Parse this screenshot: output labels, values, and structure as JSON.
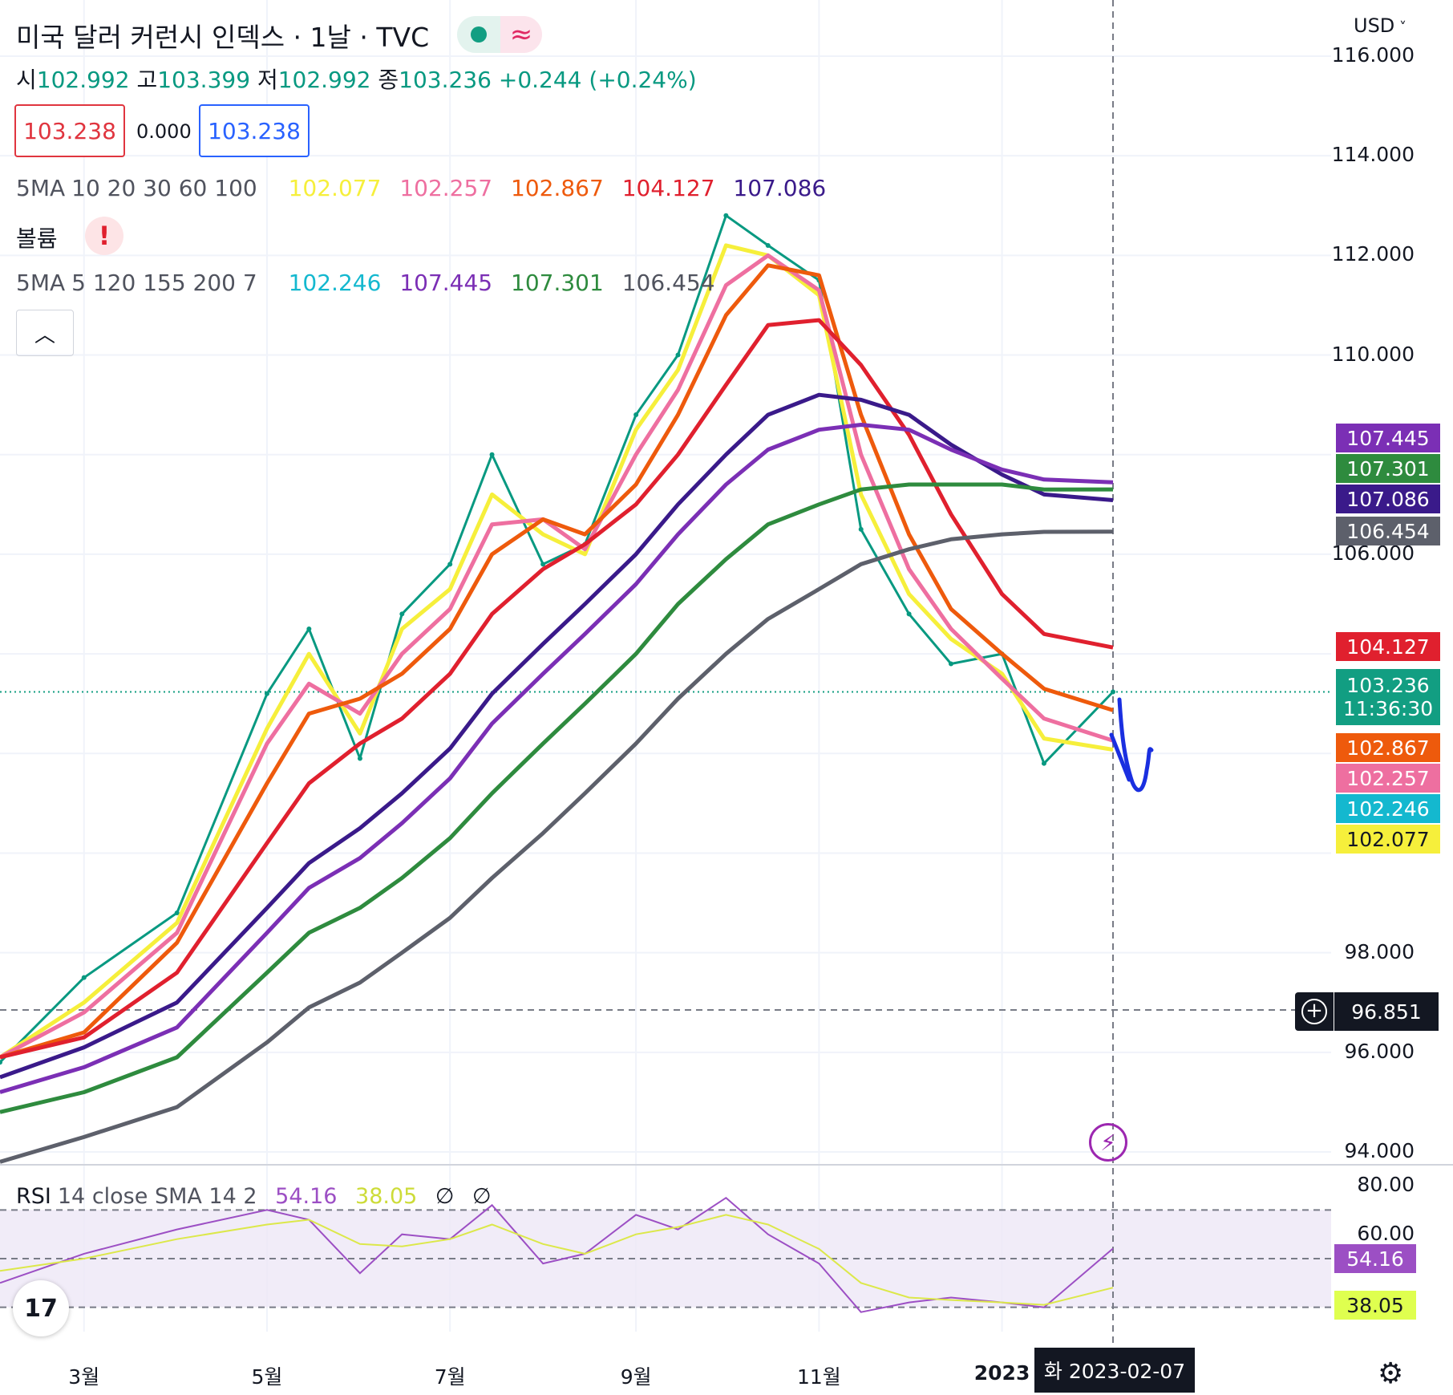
{
  "header": {
    "title": "미국 달러 커런시 인덱스 · 1날 · TVC",
    "ohlc": {
      "o_label": "시",
      "o": "102.992",
      "h_label": "고",
      "h": "103.399",
      "l_label": "저",
      "l": "102.992",
      "c_label": "종",
      "c": "103.236",
      "change": "+0.244 (+0.24%)"
    },
    "sell_price": "103.238",
    "spread": "0.000",
    "buy_price": "103.238",
    "ma_row1": {
      "name": "5MA",
      "params": "10 20 30 60 100",
      "v1": "102.077",
      "v2": "102.257",
      "v3": "102.867",
      "v4": "104.127",
      "v5": "107.086"
    },
    "volume_label": "볼륨",
    "ma_row2": {
      "name": "5MA",
      "params": "5 120 155 200 7",
      "v1": "102.246",
      "v2": "107.445",
      "v3": "107.301",
      "v4": "106.454"
    },
    "currency": "USD"
  },
  "price_axis": {
    "ticks": [
      "116.000",
      "114.000",
      "112.000",
      "110.000",
      "106.000",
      "98.000",
      "96.000",
      "94.000"
    ],
    "badges": [
      {
        "value": "107.445",
        "color": "#7b2fb5"
      },
      {
        "value": "107.301",
        "color": "#2e8b3e"
      },
      {
        "value": "107.086",
        "color": "#3a1a8a"
      },
      {
        "value": "106.454",
        "color": "#5d606b"
      },
      {
        "value": "104.127",
        "color": "#e0202e"
      },
      {
        "value": "103.236",
        "color": "#129e82",
        "sub": "11:36:30"
      },
      {
        "value": "102.867",
        "color": "#ee5a0c"
      },
      {
        "value": "102.257",
        "color": "#ee6fa0"
      },
      {
        "value": "102.246",
        "color": "#14b8cf"
      },
      {
        "value": "102.077",
        "color": "#f6ef3b"
      }
    ],
    "crosshair_value": "96.851"
  },
  "rsi": {
    "label": "RSI",
    "params": "14 close SMA 14 2",
    "rsi_value": "54.16",
    "sma_value": "38.05",
    "ticks": [
      "80.00",
      "60.00"
    ]
  },
  "time_axis": {
    "ticks": [
      "3월",
      "5월",
      "7월",
      "9월",
      "11월",
      "2023"
    ],
    "crosshair_date": "화 2023-02-07"
  },
  "chart_data": {
    "type": "line",
    "title": "미국 달러 커런시 인덱스 · 1날 · TVC",
    "x": [
      "2022-02-01",
      "2022-03-01",
      "2022-04-01",
      "2022-05-01",
      "2022-05-15",
      "2022-06-01",
      "2022-06-15",
      "2022-07-01",
      "2022-07-15",
      "2022-08-01",
      "2022-08-15",
      "2022-09-01",
      "2022-09-15",
      "2022-10-01",
      "2022-10-15",
      "2022-11-01",
      "2022-11-15",
      "2022-12-01",
      "2022-12-15",
      "2023-01-01",
      "2023-01-15",
      "2023-02-07"
    ],
    "ylim": [
      94,
      116.5
    ],
    "series": [
      {
        "name": "price",
        "values": [
          95.8,
          97.5,
          98.8,
          103.2,
          104.5,
          101.9,
          104.8,
          105.8,
          108.0,
          105.8,
          106.2,
          108.8,
          110.0,
          112.8,
          112.2,
          111.5,
          106.5,
          104.8,
          103.8,
          104.0,
          101.8,
          103.236
        ]
      },
      {
        "name": "MA10",
        "values": [
          95.9,
          97.0,
          98.6,
          102.5,
          104.0,
          102.4,
          104.5,
          105.3,
          107.2,
          106.4,
          106.0,
          108.5,
          109.7,
          112.2,
          112.0,
          111.2,
          107.2,
          105.2,
          104.3,
          103.6,
          102.3,
          102.077
        ]
      },
      {
        "name": "MA20",
        "values": [
          95.9,
          96.8,
          98.4,
          102.2,
          103.4,
          102.8,
          104.0,
          104.9,
          106.6,
          106.7,
          106.1,
          108.0,
          109.3,
          111.4,
          112.0,
          111.3,
          108.0,
          105.7,
          104.5,
          103.5,
          102.7,
          102.257
        ]
      },
      {
        "name": "MA30",
        "values": [
          95.9,
          96.4,
          98.2,
          101.4,
          102.8,
          103.1,
          103.6,
          104.5,
          106.0,
          106.7,
          106.4,
          107.4,
          108.8,
          110.8,
          111.8,
          111.6,
          108.8,
          106.4,
          104.9,
          104.0,
          103.3,
          102.867
        ]
      },
      {
        "name": "MA60",
        "values": [
          95.9,
          96.3,
          97.6,
          100.2,
          101.4,
          102.2,
          102.7,
          103.6,
          104.8,
          105.7,
          106.2,
          107.0,
          108.0,
          109.4,
          110.6,
          110.7,
          109.8,
          108.4,
          106.8,
          105.2,
          104.4,
          104.127
        ]
      },
      {
        "name": "MA100",
        "values": [
          95.5,
          96.1,
          97.0,
          98.9,
          99.8,
          100.5,
          101.2,
          102.1,
          103.2,
          104.2,
          105.0,
          106.0,
          107.0,
          108.0,
          108.8,
          109.2,
          109.1,
          108.8,
          108.2,
          107.6,
          107.2,
          107.086
        ]
      },
      {
        "name": "MA120",
        "values": [
          95.2,
          95.7,
          96.5,
          98.4,
          99.3,
          99.9,
          100.6,
          101.5,
          102.6,
          103.6,
          104.4,
          105.4,
          106.4,
          107.4,
          108.1,
          108.5,
          108.6,
          108.5,
          108.1,
          107.7,
          107.5,
          107.445
        ]
      },
      {
        "name": "MA155",
        "values": [
          94.8,
          95.2,
          95.9,
          97.6,
          98.4,
          98.9,
          99.5,
          100.3,
          101.2,
          102.2,
          103.0,
          104.0,
          105.0,
          105.9,
          106.6,
          107.0,
          107.3,
          107.4,
          107.4,
          107.4,
          107.3,
          107.301
        ]
      },
      {
        "name": "MA200",
        "values": [
          93.8,
          94.3,
          94.9,
          96.2,
          96.9,
          97.4,
          98.0,
          98.7,
          99.5,
          100.4,
          101.2,
          102.2,
          103.1,
          104.0,
          104.7,
          105.3,
          105.8,
          106.1,
          106.3,
          106.4,
          106.45,
          106.454
        ]
      }
    ],
    "rsi_series": {
      "name": "RSI",
      "ylim": [
        20,
        80
      ],
      "values": [
        40,
        52,
        62,
        70,
        66,
        44,
        60,
        58,
        72,
        48,
        52,
        68,
        62,
        75,
        60,
        48,
        28,
        32,
        34,
        32,
        30,
        54.16
      ]
    },
    "rsi_sma": {
      "name": "SMA",
      "values": [
        45,
        50,
        58,
        64,
        66,
        56,
        55,
        58,
        64,
        56,
        52,
        60,
        63,
        68,
        64,
        54,
        40,
        34,
        33,
        32,
        31,
        38.05
      ]
    }
  }
}
